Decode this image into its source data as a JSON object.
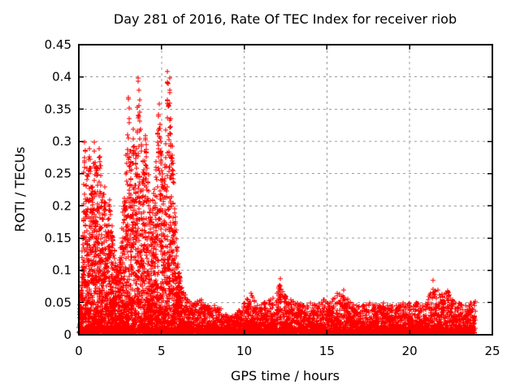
{
  "chart_data": {
    "type": "scatter",
    "title": "Day 281 of 2016, Rate Of TEC Index for receiver riob",
    "xlabel": "GPS time / hours",
    "ylabel": "ROTI / TECUs",
    "xlim": [
      0,
      25
    ],
    "ylim": [
      0,
      0.45
    ],
    "xticks": [
      {
        "label": "0",
        "value": 0
      },
      {
        "label": "5",
        "value": 5
      },
      {
        "label": "10",
        "value": 10
      },
      {
        "label": "15",
        "value": 15
      },
      {
        "label": "20",
        "value": 20
      },
      {
        "label": "25",
        "value": 25
      }
    ],
    "yticks": [
      {
        "label": "0",
        "value": 0
      },
      {
        "label": "0.05",
        "value": 0.05
      },
      {
        "label": "0.1",
        "value": 0.1
      },
      {
        "label": "0.15",
        "value": 0.15
      },
      {
        "label": "0.2",
        "value": 0.2
      },
      {
        "label": "0.25",
        "value": 0.25
      },
      {
        "label": "0.3",
        "value": 0.3
      },
      {
        "label": "0.35",
        "value": 0.35
      },
      {
        "label": "0.4",
        "value": 0.4
      },
      {
        "label": "0.45",
        "value": 0.45
      }
    ],
    "grid": {
      "visible": true,
      "style": "dashed",
      "color": "#9c9c9c"
    },
    "axis_color": "#000000",
    "background_color": "#ffffff",
    "legend": "none",
    "series": [
      {
        "name": "ROTI",
        "marker": "plus",
        "color": "#ff0000",
        "time_range_hours": [
          0.05,
          23.95
        ],
        "value_floor": 0.003,
        "max_value": 0.41,
        "upper_envelope": [
          [
            0.05,
            0.04
          ],
          [
            0.2,
            0.12
          ],
          [
            0.35,
            0.3
          ],
          [
            0.5,
            0.26
          ],
          [
            0.65,
            0.29
          ],
          [
            0.8,
            0.22
          ],
          [
            0.95,
            0.3
          ],
          [
            1.1,
            0.26
          ],
          [
            1.25,
            0.29
          ],
          [
            1.4,
            0.21
          ],
          [
            1.55,
            0.23
          ],
          [
            1.7,
            0.17
          ],
          [
            1.85,
            0.21
          ],
          [
            2.0,
            0.17
          ],
          [
            2.15,
            0.13
          ],
          [
            2.3,
            0.1
          ],
          [
            2.5,
            0.12
          ],
          [
            2.7,
            0.2
          ],
          [
            2.85,
            0.28
          ],
          [
            3.0,
            0.37
          ],
          [
            3.15,
            0.27
          ],
          [
            3.3,
            0.32
          ],
          [
            3.45,
            0.28
          ],
          [
            3.6,
            0.4
          ],
          [
            3.75,
            0.32
          ],
          [
            3.9,
            0.27
          ],
          [
            4.05,
            0.31
          ],
          [
            4.2,
            0.25
          ],
          [
            4.35,
            0.18
          ],
          [
            4.5,
            0.22
          ],
          [
            4.65,
            0.27
          ],
          [
            4.85,
            0.36
          ],
          [
            5.0,
            0.28
          ],
          [
            5.15,
            0.24
          ],
          [
            5.35,
            0.41
          ],
          [
            5.5,
            0.4
          ],
          [
            5.65,
            0.28
          ],
          [
            5.8,
            0.19
          ],
          [
            5.95,
            0.13
          ],
          [
            6.1,
            0.09
          ],
          [
            6.3,
            0.065
          ],
          [
            6.6,
            0.055
          ],
          [
            7.0,
            0.05
          ],
          [
            7.4,
            0.055
          ],
          [
            7.8,
            0.045
          ],
          [
            8.2,
            0.045
          ],
          [
            8.6,
            0.04
          ],
          [
            9.0,
            0.028
          ],
          [
            9.5,
            0.032
          ],
          [
            10.0,
            0.05
          ],
          [
            10.4,
            0.065
          ],
          [
            10.8,
            0.045
          ],
          [
            11.2,
            0.05
          ],
          [
            11.6,
            0.055
          ],
          [
            12.0,
            0.065
          ],
          [
            12.2,
            0.088
          ],
          [
            12.5,
            0.06
          ],
          [
            12.8,
            0.055
          ],
          [
            13.2,
            0.05
          ],
          [
            13.6,
            0.045
          ],
          [
            14.0,
            0.05
          ],
          [
            14.4,
            0.045
          ],
          [
            14.8,
            0.055
          ],
          [
            15.2,
            0.05
          ],
          [
            15.6,
            0.065
          ],
          [
            16.0,
            0.07
          ],
          [
            16.4,
            0.05
          ],
          [
            16.8,
            0.045
          ],
          [
            17.2,
            0.045
          ],
          [
            17.6,
            0.05
          ],
          [
            18.0,
            0.045
          ],
          [
            18.4,
            0.05
          ],
          [
            18.8,
            0.045
          ],
          [
            19.2,
            0.045
          ],
          [
            19.6,
            0.05
          ],
          [
            20.0,
            0.05
          ],
          [
            20.4,
            0.05
          ],
          [
            20.8,
            0.045
          ],
          [
            21.1,
            0.055
          ],
          [
            21.4,
            0.085
          ],
          [
            21.7,
            0.07
          ],
          [
            22.0,
            0.06
          ],
          [
            22.3,
            0.068
          ],
          [
            22.6,
            0.055
          ],
          [
            23.0,
            0.05
          ],
          [
            23.4,
            0.045
          ],
          [
            23.7,
            0.05
          ],
          [
            23.95,
            0.052
          ]
        ],
        "density": {
          "seed": 2016281,
          "epoch_step_hours": 0.015,
          "active_until_hour": 6.2,
          "points_per_epoch_active": 8,
          "points_per_epoch_quiet": 4,
          "spread_exponent_active": 2.2,
          "spread_exponent_quiet": 3.0
        }
      }
    ]
  }
}
